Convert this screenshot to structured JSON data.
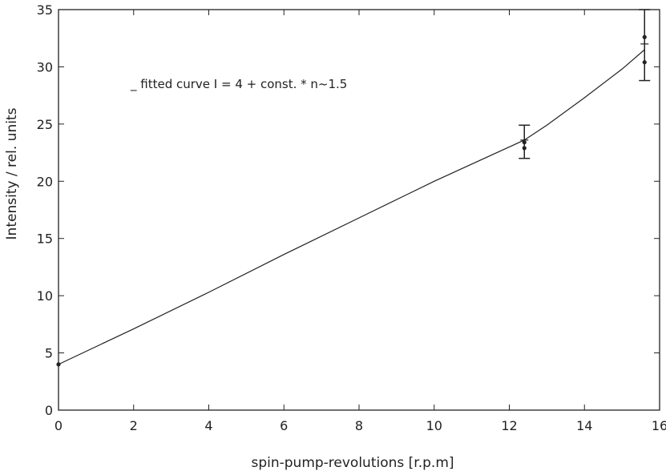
{
  "chart_data": {
    "type": "line",
    "title": "",
    "xlabel": "spin-pump-revolutions [r.p.m]",
    "ylabel": "Intensity / rel. units",
    "xlim": [
      0,
      16
    ],
    "ylim": [
      0,
      35
    ],
    "xticks": [
      0,
      2,
      4,
      6,
      8,
      10,
      12,
      14,
      16
    ],
    "xtick_labels": [
      "0",
      "2",
      "4",
      "6",
      "8",
      "10",
      "12",
      "14",
      "16"
    ],
    "yticks": [
      0,
      5,
      10,
      15,
      20,
      25,
      30,
      35
    ],
    "ytick_labels": [
      "0",
      "5",
      "10",
      "15",
      "20",
      "25",
      "30",
      "35"
    ],
    "grid": false,
    "annotation": "_ fitted curve I = 4 + const. * n~1.5",
    "series": [
      {
        "name": "fitted curve",
        "style": "line",
        "x": [
          0,
          2,
          4,
          6,
          8,
          10,
          12.4,
          13.0,
          14.0,
          15.0,
          15.6
        ],
        "y": [
          4.0,
          7.1,
          10.3,
          13.6,
          16.8,
          20.0,
          23.6,
          24.9,
          27.3,
          29.8,
          31.5
        ]
      },
      {
        "name": "",
        "style": "markers",
        "x": [
          0,
          12.4,
          12.4,
          15.6,
          15.6
        ],
        "y": [
          4.0,
          23.4,
          22.9,
          32.6,
          30.4
        ]
      }
    ],
    "error_bars": [
      {
        "x": 12.4,
        "y_low": 22.0,
        "y_high": 24.9,
        "mid": 23.6
      },
      {
        "x": 15.6,
        "y_low": 28.8,
        "y_high": 35.0,
        "mid": 32.0
      }
    ]
  }
}
